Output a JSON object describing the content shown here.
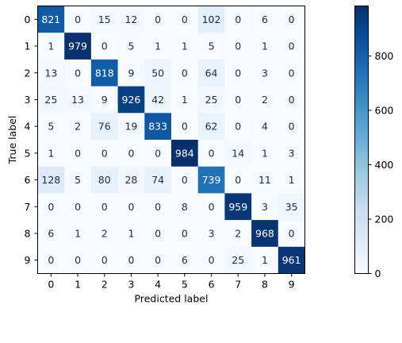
{
  "chart_data": {
    "type": "heatmap",
    "title": "",
    "xlabel": "Predicted label",
    "ylabel": "True label",
    "x_categories": [
      "0",
      "1",
      "2",
      "3",
      "4",
      "5",
      "6",
      "7",
      "8",
      "9"
    ],
    "y_categories": [
      "0",
      "1",
      "2",
      "3",
      "4",
      "5",
      "6",
      "7",
      "8",
      "9"
    ],
    "matrix": [
      [
        821,
        0,
        15,
        12,
        0,
        0,
        102,
        0,
        6,
        0
      ],
      [
        1,
        979,
        0,
        5,
        1,
        1,
        5,
        0,
        1,
        0
      ],
      [
        13,
        0,
        818,
        9,
        50,
        0,
        64,
        0,
        3,
        0
      ],
      [
        25,
        13,
        9,
        926,
        42,
        1,
        25,
        0,
        2,
        0
      ],
      [
        5,
        2,
        76,
        19,
        833,
        0,
        62,
        0,
        4,
        0
      ],
      [
        1,
        0,
        0,
        0,
        0,
        984,
        0,
        14,
        1,
        3
      ],
      [
        128,
        5,
        80,
        28,
        74,
        0,
        739,
        0,
        11,
        1
      ],
      [
        0,
        0,
        0,
        0,
        0,
        8,
        0,
        959,
        3,
        35
      ],
      [
        6,
        1,
        2,
        1,
        0,
        0,
        3,
        2,
        968,
        0
      ],
      [
        0,
        0,
        0,
        0,
        0,
        6,
        0,
        25,
        1,
        961
      ]
    ],
    "colormap": "Blues",
    "colorbar": {
      "range": [
        0,
        984
      ],
      "ticks": [
        0,
        200,
        400,
        600,
        800
      ]
    },
    "grid": false
  }
}
